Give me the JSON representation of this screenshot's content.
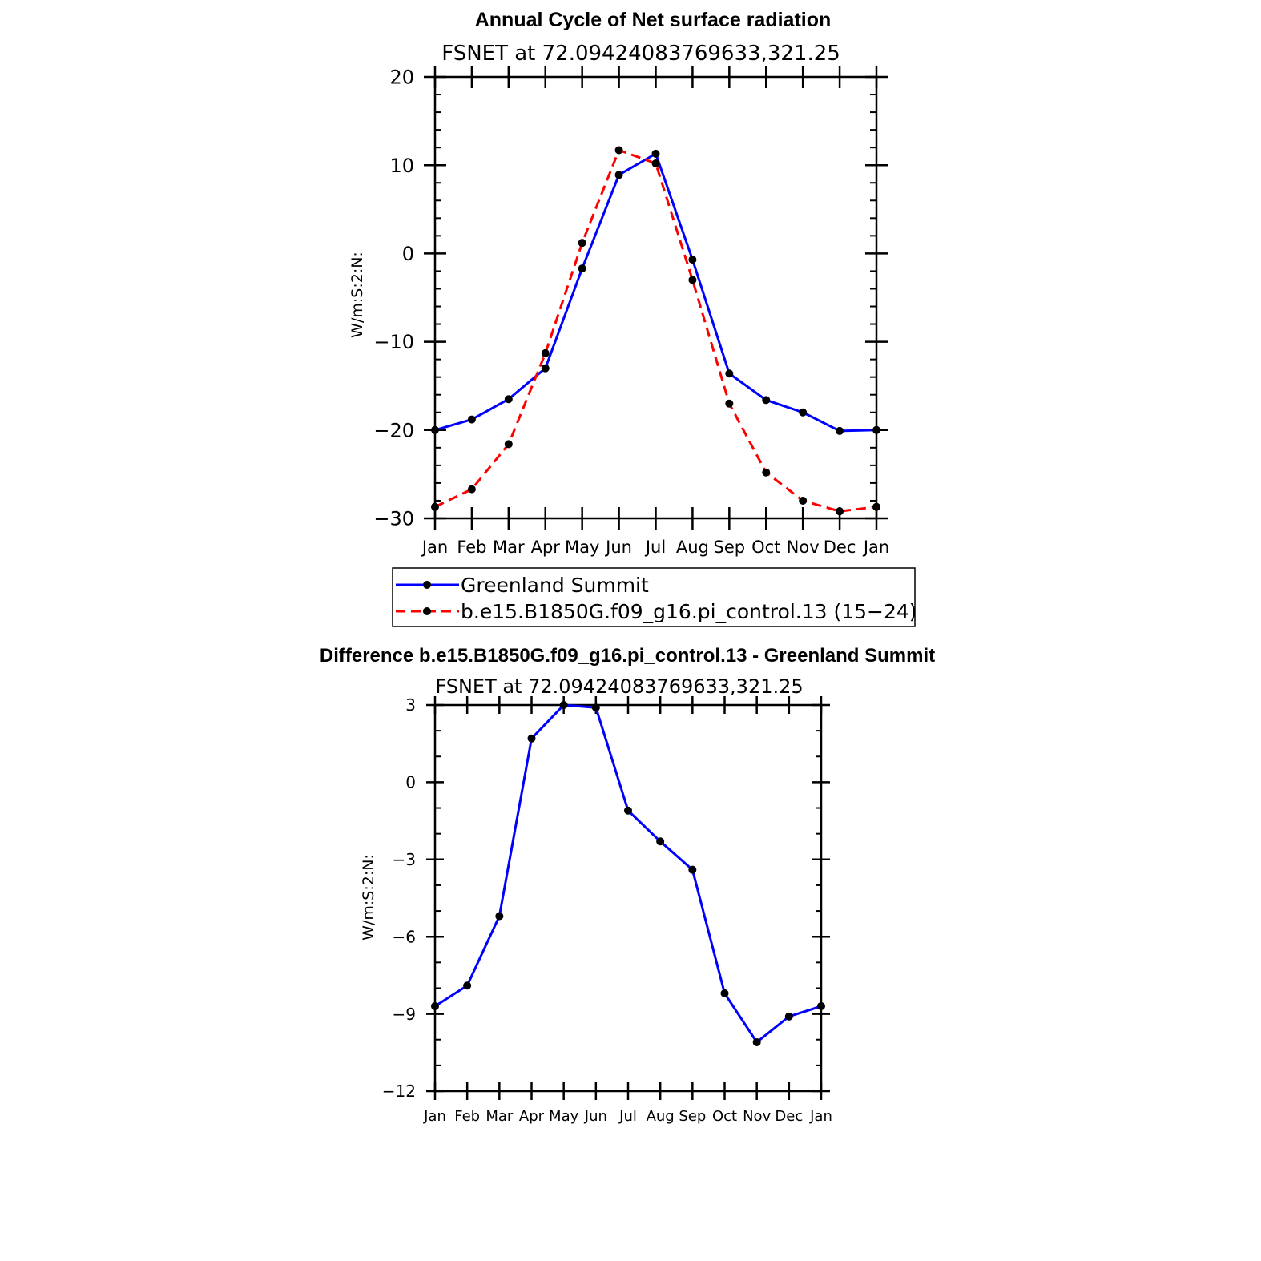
{
  "chart_data": [
    {
      "type": "line",
      "title": "Annual Cycle of Net surface radiation",
      "subtitle": "FSNET at 72.09424083769633,321.25",
      "xlabel": "",
      "ylabel": "W/m:S:2:N:",
      "categories": [
        "Jan",
        "Feb",
        "Mar",
        "Apr",
        "May",
        "Jun",
        "Jul",
        "Aug",
        "Sep",
        "Oct",
        "Nov",
        "Dec",
        "Jan"
      ],
      "ylim": [
        -30,
        20
      ],
      "yticks": [
        "20",
        "10",
        "0",
        "−10",
        "−20",
        "−30"
      ],
      "grid": false,
      "legend": "bottom",
      "series": [
        {
          "name": "Greenland Summit",
          "color": "#0000ff",
          "dash": "solid",
          "values": [
            -20.0,
            -18.8,
            -16.5,
            -13.0,
            -1.7,
            8.9,
            11.3,
            -0.7,
            -13.6,
            -16.6,
            -18.0,
            -20.1,
            -20.0
          ]
        },
        {
          "name": "b.e15.B1850G.f09_g16.pi_control.13 (15−24)",
          "color": "#ff0000",
          "dash": "dashed",
          "values": [
            -28.7,
            -26.7,
            -21.6,
            -11.3,
            1.2,
            11.7,
            10.2,
            -3.0,
            -17.0,
            -24.8,
            -28.0,
            -29.2,
            -28.7
          ]
        }
      ]
    },
    {
      "type": "line",
      "title": "Difference b.e15.B1850G.f09_g16.pi_control.13 - Greenland Summit",
      "subtitle": "FSNET at 72.09424083769633,321.25",
      "xlabel": "",
      "ylabel": "W/m:S:2:N:",
      "categories": [
        "Jan",
        "Feb",
        "Mar",
        "Apr",
        "May",
        "Jun",
        "Jul",
        "Aug",
        "Sep",
        "Oct",
        "Nov",
        "Dec",
        "Jan"
      ],
      "ylim": [
        -12,
        3
      ],
      "yticks": [
        "3",
        "0",
        "−3",
        "−6",
        "−9",
        "−12"
      ],
      "grid": false,
      "series": [
        {
          "color": "#0000ff",
          "dash": "solid",
          "values": [
            -8.7,
            -7.9,
            -5.2,
            1.7,
            3.0,
            2.9,
            -1.1,
            -2.3,
            -3.4,
            -8.2,
            -10.1,
            -9.1,
            -8.7
          ]
        }
      ]
    }
  ]
}
